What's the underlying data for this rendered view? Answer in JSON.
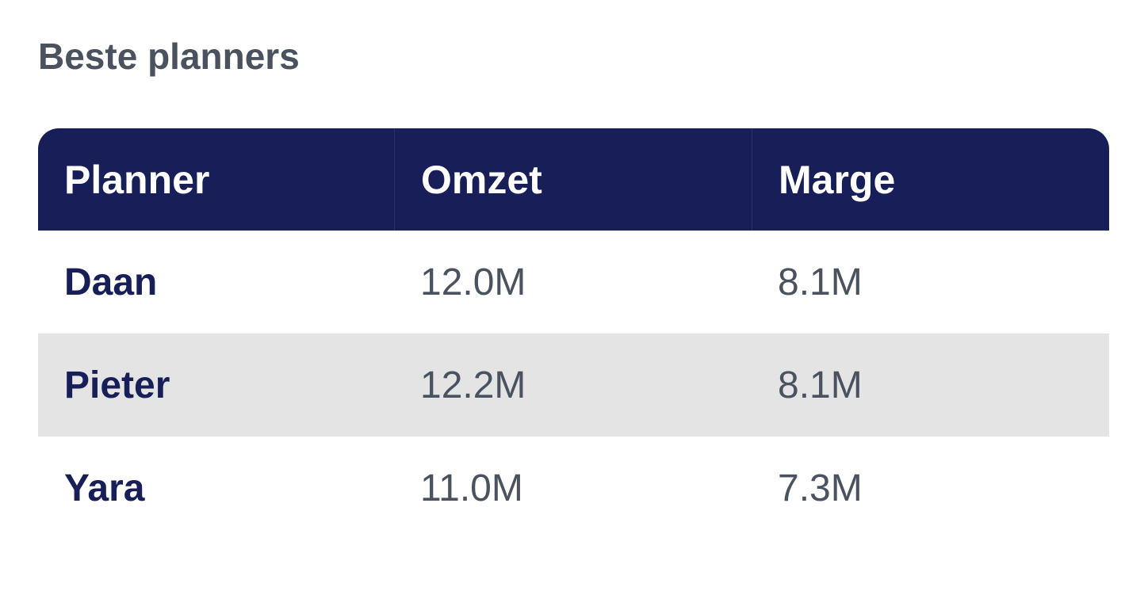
{
  "title": "Beste planners",
  "table": {
    "header": [
      "Planner",
      "Omzet",
      "Marge"
    ],
    "rows": [
      [
        "Daan",
        "12.0M",
        "8.1M"
      ],
      [
        "Pieter",
        "12.2M",
        "8.1M"
      ],
      [
        "Yara",
        "11.0M",
        "7.3M"
      ]
    ]
  }
}
